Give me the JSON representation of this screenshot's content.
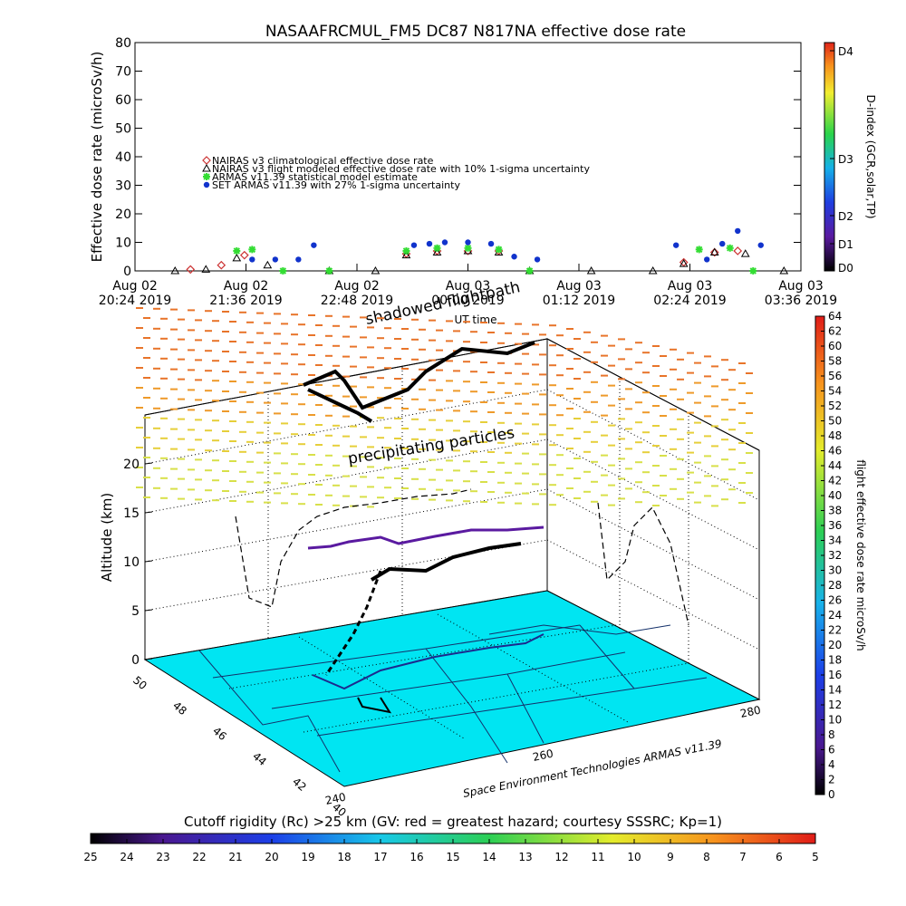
{
  "title": "NASAAFRCMUL_FM5 DC87 N817NA effective dose rate",
  "top_chart": {
    "ylabel": "Effective dose rate (microSv/h)",
    "xlabel": "UT time",
    "y_ticks": [
      "0",
      "10",
      "20",
      "30",
      "40",
      "50",
      "60",
      "70",
      "80"
    ],
    "x_ticks": [
      {
        "line1": "Aug 02",
        "line2": "20:24 2019"
      },
      {
        "line1": "Aug 02",
        "line2": "21:36 2019"
      },
      {
        "line1": "Aug 02",
        "line2": "22:48 2019"
      },
      {
        "line1": "Aug 03",
        "line2": "00:00 2019"
      },
      {
        "line1": "Aug 03",
        "line2": "01:12 2019"
      },
      {
        "line1": "Aug 03",
        "line2": "02:24 2019"
      },
      {
        "line1": "Aug 03",
        "line2": "03:36 2019"
      }
    ],
    "legend": [
      {
        "label": "NAIRAS v3 climatological effective dose rate",
        "color": "#cc3333",
        "symbol": "diamond"
      },
      {
        "label": "NAIRAS v3 flight modeled effective dose rate with 10% 1-sigma uncertainty",
        "color": "#000000",
        "symbol": "triangle"
      },
      {
        "label": "ARMAS v11.39 statistical model estimate",
        "color": "#33dd33",
        "symbol": "asterisk"
      },
      {
        "label": "SET ARMAS v11.39 with 27% 1-sigma uncertainty",
        "color": "#1133cc",
        "symbol": "circle"
      }
    ],
    "overlay_text": "shadowed flightpath",
    "dindex": {
      "label": "D-index (GCR,solar,TP)",
      "ticks": [
        "D0",
        "D1",
        "D2",
        "D3",
        "D4"
      ]
    }
  },
  "chart_data": [
    {
      "type": "scatter",
      "title": "NASAAFRCMUL_FM5 DC87 N817NA effective dose rate",
      "xlabel": "UT time",
      "ylabel": "Effective dose rate (microSv/h)",
      "xlim": [
        "2019-08-02 20:24",
        "2019-08-03 03:36"
      ],
      "ylim": [
        0,
        80
      ],
      "grid": false,
      "legend_position": "upper-left",
      "series": [
        {
          "name": "NAIRAS v3 climatological effective dose rate",
          "x": [
            "2019-08-02 21:00",
            "2019-08-02 21:20",
            "2019-08-02 21:35",
            "2019-08-02 23:20",
            "2019-08-02 23:40",
            "2019-08-03 00:00",
            "2019-08-03 00:20",
            "2019-08-03 02:20",
            "2019-08-03 02:40",
            "2019-08-03 02:55"
          ],
          "y": [
            0.5,
            2,
            5.5,
            6,
            7,
            7,
            7,
            3,
            6.5,
            7
          ]
        },
        {
          "name": "NAIRAS v3 flight modeled effective dose rate with 10% 1-sigma uncertainty",
          "x": [
            "2019-08-02 20:50",
            "2019-08-02 21:10",
            "2019-08-02 21:30",
            "2019-08-02 21:50",
            "2019-08-02 22:30",
            "2019-08-02 23:00",
            "2019-08-02 23:20",
            "2019-08-02 23:40",
            "2019-08-03 00:00",
            "2019-08-03 00:20",
            "2019-08-03 00:40",
            "2019-08-03 01:20",
            "2019-08-03 02:00",
            "2019-08-03 02:20",
            "2019-08-03 02:40",
            "2019-08-03 03:00",
            "2019-08-03 03:25"
          ],
          "y": [
            0,
            0.5,
            4.5,
            2,
            0,
            0,
            5.5,
            6.5,
            7,
            6.5,
            0,
            0,
            0,
            2.5,
            6.5,
            6,
            0
          ]
        },
        {
          "name": "ARMAS v11.39 statistical model estimate",
          "x": [
            "2019-08-02 21:30",
            "2019-08-02 21:40",
            "2019-08-02 22:00",
            "2019-08-02 22:30",
            "2019-08-02 23:20",
            "2019-08-02 23:40",
            "2019-08-03 00:00",
            "2019-08-03 00:20",
            "2019-08-03 00:40",
            "2019-08-03 02:30",
            "2019-08-03 02:50",
            "2019-08-03 03:05"
          ],
          "y": [
            7,
            7.5,
            0,
            0,
            7,
            8,
            8,
            7.5,
            0,
            7.5,
            8,
            0
          ]
        },
        {
          "name": "SET ARMAS v11.39 with 27% 1-sigma uncertainty",
          "x": [
            "2019-08-02 21:40",
            "2019-08-02 21:55",
            "2019-08-02 22:10",
            "2019-08-02 22:20",
            "2019-08-02 23:25",
            "2019-08-02 23:35",
            "2019-08-02 23:45",
            "2019-08-03 00:00",
            "2019-08-03 00:15",
            "2019-08-03 00:30",
            "2019-08-03 00:45",
            "2019-08-03 02:15",
            "2019-08-03 02:35",
            "2019-08-03 02:45",
            "2019-08-03 02:55",
            "2019-08-03 03:10"
          ],
          "y": [
            4,
            4,
            4,
            9,
            9,
            9.5,
            10,
            10,
            9.5,
            5,
            4,
            9,
            4,
            9.5,
            14,
            9
          ]
        }
      ]
    },
    {
      "type": "scatter",
      "title": "",
      "zlabel": "Altitude (km)",
      "zlim": [
        0,
        23
      ],
      "z_ticks": [
        "0",
        "5",
        "10",
        "15",
        "20"
      ],
      "lat_ticks": [
        "50",
        "48",
        "46",
        "44",
        "42",
        "40"
      ],
      "lon_ticks": [
        "240",
        "260",
        "280"
      ],
      "annotation": "precipitating particles",
      "credit": "Space Environment Technologies ARMAS v11.39",
      "dose_colorbar": {
        "label": "flight effective dose rate microSv/h",
        "ticks": [
          "0",
          "2",
          "4",
          "6",
          "8",
          "10",
          "12",
          "14",
          "16",
          "18",
          "20",
          "22",
          "24",
          "26",
          "28",
          "30",
          "32",
          "34",
          "36",
          "38",
          "40",
          "42",
          "44",
          "46",
          "48",
          "50",
          "52",
          "54",
          "56",
          "58",
          "60",
          "62",
          "64"
        ]
      }
    }
  ],
  "bottom_colorbar": {
    "label": "Cutoff rigidity (Rc) >25 km (GV: red = greatest hazard; courtesy SSSRC; Kp=1)",
    "ticks": [
      "25",
      "24",
      "23",
      "22",
      "21",
      "20",
      "19",
      "18",
      "17",
      "16",
      "15",
      "14",
      "13",
      "12",
      "11",
      "10",
      "9",
      "8",
      "7",
      "6",
      "5"
    ]
  }
}
